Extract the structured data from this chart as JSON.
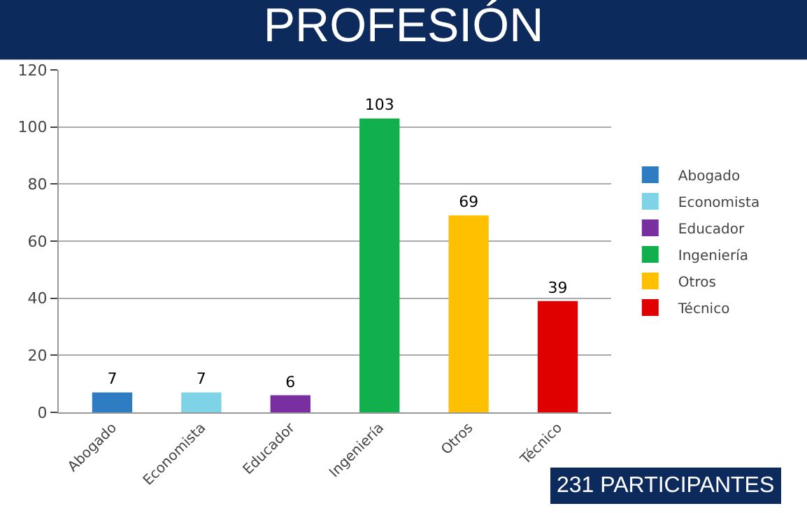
{
  "chart_data": {
    "type": "bar",
    "title": "PROFESIÓN",
    "categories": [
      "Abogado",
      "Economista",
      "Educador",
      "Ingeniería",
      "Otros",
      "Técnico"
    ],
    "series": [
      {
        "name": "Abogado",
        "color": "#2e7dc2",
        "values": [
          7,
          null,
          null,
          null,
          null,
          null
        ]
      },
      {
        "name": "Economista",
        "color": "#7fd3e6",
        "values": [
          null,
          7,
          null,
          null,
          null,
          null
        ]
      },
      {
        "name": "Educador",
        "color": "#7a2fa0",
        "values": [
          null,
          null,
          6,
          null,
          null,
          null
        ]
      },
      {
        "name": "Ingeniería",
        "color": "#12b04c",
        "values": [
          null,
          null,
          null,
          103,
          null,
          null
        ]
      },
      {
        "name": "Otros",
        "color": "#ffc000",
        "values": [
          null,
          null,
          null,
          null,
          69,
          null
        ]
      },
      {
        "name": "Técnico",
        "color": "#e00000",
        "values": [
          null,
          null,
          null,
          null,
          null,
          39
        ]
      }
    ],
    "ylim": [
      0,
      120
    ],
    "yticks": [
      0,
      20,
      40,
      60,
      80,
      100,
      120
    ],
    "grid": "y",
    "legend": "right",
    "data_labels": true,
    "annotations": [
      "231 PARTICIPANTES"
    ]
  }
}
